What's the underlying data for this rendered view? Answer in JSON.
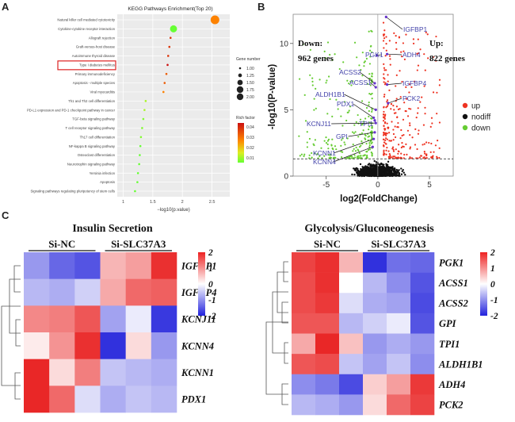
{
  "panels": {
    "a": "A",
    "b": "B",
    "c": "C"
  },
  "chart_data": [
    {
      "type": "scatter",
      "panel": "A",
      "title": "KEGG Pathways Enrichment(Top 20)",
      "xlabel": "−log10(p.value)",
      "x_ticks": [
        "1",
        "1.5",
        "2",
        "2.5"
      ],
      "xlim": [
        0.9,
        2.8
      ],
      "categories": [
        "Natural killer cell mediated cytotoxicity",
        "Cytokine-cytokine receptor interaction",
        "Allograft rejection",
        "Graft-versus-host disease",
        "Autoimmune thyroid disease",
        "Type I diabetes mellitus",
        "Primary immunodeficiency",
        "Apoptosis - multiple species",
        "Viral myocarditis",
        "Th1 and Th2 cell differentiation",
        "PD-L1 expression and PD-1 checkpoint pathway in cancer",
        "TGF-beta signaling pathway",
        "T cell receptor signaling pathway",
        "Th17 cell differentiation",
        "NF-kappa B signaling pathway",
        "Osteoclast differentiation",
        "Neurotrophin signaling pathway",
        "Yersinia infection",
        "Apoptosis",
        "Signaling pathways regulating pluripotency of stem cells"
      ],
      "values": [
        2.55,
        1.85,
        1.8,
        1.78,
        1.76,
        1.75,
        1.73,
        1.7,
        1.68,
        1.38,
        1.36,
        1.34,
        1.32,
        1.3,
        1.29,
        1.28,
        1.27,
        1.25,
        1.24,
        1.2
      ],
      "gene_number": [
        2.0,
        1.75,
        1.0,
        1.0,
        1.0,
        1.0,
        1.0,
        1.0,
        1.0,
        1.0,
        1.0,
        1.0,
        1.0,
        1.0,
        1.0,
        1.0,
        1.0,
        1.0,
        1.0,
        1.0
      ],
      "rich_factor": [
        0.03,
        0.01,
        0.04,
        0.04,
        0.04,
        0.045,
        0.035,
        0.035,
        0.03,
        0.015,
        0.015,
        0.012,
        0.012,
        0.012,
        0.01,
        0.01,
        0.01,
        0.01,
        0.01,
        0.01
      ],
      "highlight": "Type I diabetes mellitus",
      "legend_size": {
        "title": "Gene number",
        "entries": [
          "1.00",
          "1.25",
          "1.50",
          "1.75",
          "2.00"
        ]
      },
      "legend_color": {
        "title": "Rich factor",
        "entries": [
          "0.04",
          "0.03",
          "0.02",
          "0.01"
        ],
        "low": "#66ff33",
        "high": "#cc1111"
      }
    },
    {
      "type": "scatter",
      "panel": "B",
      "title": "",
      "xlabel": "log2(FoldChange)",
      "ylabel": "-log10(P-value)",
      "x_ticks": [
        "-5",
        "0",
        "5"
      ],
      "y_ticks": [
        "0",
        "5",
        "10"
      ],
      "xlim": [
        -8.2,
        7.3
      ],
      "ylim": [
        0,
        12.2
      ],
      "threshold_y": 1.3,
      "counts": {
        "down_label": "Down:",
        "down_value": "962 genes",
        "up_label": "Up:",
        "up_value": "822 genes"
      },
      "legend": [
        "up",
        "nodiff",
        "down"
      ],
      "colors": {
        "up": "#ee3322",
        "nodiff": "#111111",
        "down": "#66cc33"
      },
      "labeled_genes": [
        {
          "name": "IGFBP1",
          "x": 0.8,
          "y": 12.0
        },
        {
          "name": "PGK1",
          "x": -0.1,
          "y": 9.1
        },
        {
          "name": "ADH4",
          "x": 0.9,
          "y": 9.2
        },
        {
          "name": "ACSS2",
          "x": -0.3,
          "y": 7.0
        },
        {
          "name": "ACSS1",
          "x": -0.2,
          "y": 6.7
        },
        {
          "name": "IGFBP4",
          "x": 0.9,
          "y": 6.9
        },
        {
          "name": "ALDH1B1",
          "x": -0.2,
          "y": 5.0
        },
        {
          "name": "PCK2",
          "x": 1.0,
          "y": 5.5
        },
        {
          "name": "PDX1",
          "x": -0.4,
          "y": 4.4
        },
        {
          "name": "TPI1",
          "x": -0.3,
          "y": 4.2
        },
        {
          "name": "KCNJ11",
          "x": -0.2,
          "y": 4.0
        },
        {
          "name": "GPI",
          "x": -0.3,
          "y": 3.3
        },
        {
          "name": "KCNN1",
          "x": -0.4,
          "y": 2.8
        },
        {
          "name": "KCNN4",
          "x": -0.5,
          "y": 2.2
        }
      ]
    },
    {
      "type": "heatmap",
      "panel": "C-left",
      "title": "Insulin Secretion",
      "groups": [
        "Si-NC",
        "Si-SLC37A3"
      ],
      "rows": [
        "IGFBP1",
        "IGFBP4",
        "KCNJ11",
        "KCNN4",
        "KCNN1",
        "PDX1"
      ],
      "values": [
        [
          -0.8,
          -1.3,
          -1.5,
          0.5,
          0.7,
          1.8
        ],
        [
          -0.5,
          -0.6,
          -0.3,
          0.6,
          1.2,
          1.3
        ],
        [
          0.9,
          1.0,
          1.4,
          -0.7,
          -0.1,
          -1.8
        ],
        [
          0.1,
          0.8,
          1.8,
          -1.9,
          0.2,
          -0.8
        ],
        [
          1.9,
          0.2,
          1.0,
          -0.4,
          -0.5,
          -0.6
        ],
        [
          1.9,
          1.2,
          -0.2,
          -0.6,
          -0.4,
          -0.5
        ]
      ],
      "scale_ticks": [
        "2",
        "1",
        "0",
        "-1",
        "-2"
      ]
    },
    {
      "type": "heatmap",
      "panel": "C-right",
      "title": "Glycolysis/Gluconeogenesis",
      "groups": [
        "Si-NC",
        "Si-SLC37A3"
      ],
      "rows": [
        "PGK1",
        "ACSS1",
        "ACSS2",
        "GPI",
        "TPI1",
        "ALDH1B1",
        "ADH4",
        "PCK2"
      ],
      "values": [
        [
          1.6,
          1.8,
          0.5,
          -1.9,
          -1.2,
          -1.3
        ],
        [
          1.5,
          1.8,
          0.0,
          -0.5,
          -0.9,
          -1.5
        ],
        [
          1.5,
          1.7,
          -0.2,
          -0.6,
          -0.7,
          -1.6
        ],
        [
          1.4,
          1.4,
          -0.5,
          -0.3,
          -0.1,
          -1.5
        ],
        [
          0.6,
          1.9,
          0.4,
          -0.8,
          -0.6,
          -0.8
        ],
        [
          1.4,
          1.5,
          -0.4,
          -0.7,
          -0.4,
          -0.9
        ],
        [
          -0.9,
          -1.1,
          -1.6,
          0.3,
          0.7,
          1.7
        ],
        [
          -0.5,
          -0.6,
          -0.8,
          0.2,
          1.2,
          1.6
        ]
      ],
      "scale_ticks": [
        "2",
        "1",
        "0",
        "-1",
        "-2"
      ]
    }
  ]
}
